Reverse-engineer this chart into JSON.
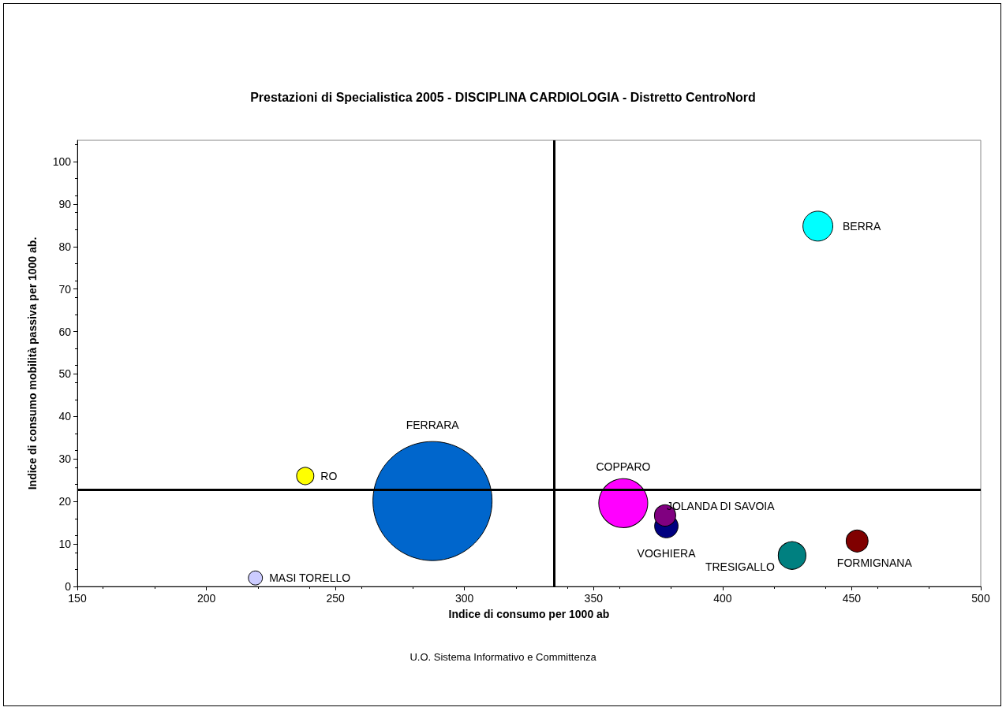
{
  "chart_data": {
    "type": "bubble",
    "title": "Prestazioni di Specialistica 2005 - DISCIPLINA CARDIOLOGIA - Distretto CentroNord",
    "xlabel": "Indice di consumo per 1000 ab",
    "ylabel": "Indice di consumo mobilità passiva per 1000 ab.",
    "annotations": [
      "U.O. Sistema Informativo e Committenza"
    ],
    "xlim": [
      150,
      500
    ],
    "xticks": [
      150,
      200,
      250,
      300,
      350,
      400,
      450,
      500
    ],
    "ylim": [
      0,
      105
    ],
    "yticks": [
      0,
      10,
      20,
      30,
      40,
      50,
      60,
      70,
      80,
      90,
      100
    ],
    "series": [
      {
        "name": "RO",
        "color": "#ffff00",
        "x": [
          238.3
        ],
        "values": [
          26.0
        ],
        "sizes": [
          0.021
        ]
      },
      {
        "name": "MASI TORELLO",
        "color": "#ccccff",
        "x": [
          219
        ],
        "values": [
          2.0
        ],
        "sizes": [
          0.014
        ]
      },
      {
        "name": "FERRARA",
        "color": "#0066cc",
        "x": [
          287.6
        ],
        "values": [
          20.1
        ],
        "sizes": [
          1
        ]
      },
      {
        "name": "COPPARO",
        "color": "#ff00ff",
        "x": [
          361.5
        ],
        "values": [
          19.6
        ],
        "sizes": [
          0.169
        ]
      },
      {
        "name": "VOGHIERA",
        "color": "#000080",
        "x": [
          378.2
        ],
        "values": [
          14.2
        ],
        "sizes": [
          0.039
        ]
      },
      {
        "name": "JOLANDA DI SAVOIA",
        "color": "#800080",
        "x": [
          377.7
        ],
        "values": [
          16.7
        ],
        "sizes": [
          0.032
        ]
      },
      {
        "name": "TRESIGALLO",
        "color": "#008080",
        "x": [
          426.9
        ],
        "values": [
          7.3
        ],
        "sizes": [
          0.054
        ]
      },
      {
        "name": "FORMIGNANA",
        "color": "#800000",
        "x": [
          452.1
        ],
        "values": [
          10.7
        ],
        "sizes": [
          0.034
        ]
      },
      {
        "name": "BERRA",
        "color": "#00ffff",
        "x": [
          436.9
        ],
        "values": [
          84.8
        ],
        "sizes": [
          0.063
        ]
      }
    ],
    "ref_lines": [
      {
        "axis": "x",
        "value": 334.7,
        "color": "#000000"
      },
      {
        "axis": "y",
        "value": 22.7,
        "color": "#000000"
      }
    ]
  }
}
